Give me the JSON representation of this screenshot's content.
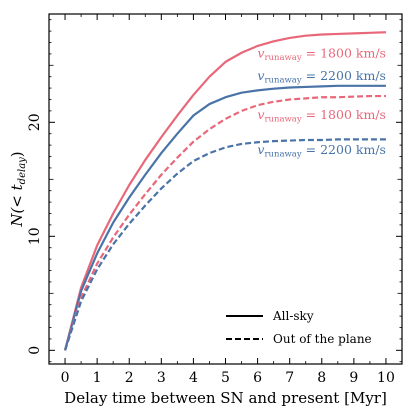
{
  "chart_data": {
    "type": "line",
    "xlabel": "Delay time between SN and present [Myr]",
    "ylabel_main": "N(< t",
    "ylabel_sub": "delay",
    "ylabel_close": ")",
    "xlim": [
      -0.5,
      10.5
    ],
    "ylim": [
      -1.2,
      29.5
    ],
    "xticks": [
      0,
      1,
      2,
      3,
      4,
      5,
      6,
      7,
      8,
      9,
      10
    ],
    "yticks": [
      0,
      10,
      20
    ],
    "colors": {
      "red": "#e8687a",
      "blue": "#4a74a8"
    },
    "series": [
      {
        "color": "red",
        "dash": false,
        "x": [
          0,
          0.5,
          1,
          1.5,
          2,
          2.5,
          3,
          3.5,
          4,
          4.5,
          5,
          5.5,
          6,
          6.5,
          7,
          7.5,
          8,
          8.5,
          9,
          9.5,
          10
        ],
        "y": [
          0,
          5.5,
          9.2,
          12.0,
          14.5,
          16.7,
          18.7,
          20.6,
          22.4,
          24.0,
          25.3,
          26.1,
          26.7,
          27.1,
          27.4,
          27.6,
          27.7,
          27.75,
          27.8,
          27.85,
          27.9
        ]
      },
      {
        "color": "blue",
        "dash": false,
        "x": [
          0,
          0.5,
          1,
          1.5,
          2,
          2.5,
          3,
          3.5,
          4,
          4.5,
          5,
          5.5,
          6,
          6.5,
          7,
          7.5,
          8,
          8.5,
          9,
          9.5,
          10
        ],
        "y": [
          0,
          5.2,
          8.5,
          11.2,
          13.4,
          15.4,
          17.3,
          19.0,
          20.6,
          21.6,
          22.2,
          22.6,
          22.8,
          22.95,
          23.05,
          23.1,
          23.15,
          23.2,
          23.2,
          23.2,
          23.2
        ]
      },
      {
        "color": "red",
        "dash": true,
        "x": [
          0,
          0.5,
          1,
          1.5,
          2,
          2.5,
          3,
          3.5,
          4,
          4.5,
          5,
          5.5,
          6,
          6.5,
          7,
          7.5,
          8,
          8.5,
          9,
          9.5,
          10
        ],
        "y": [
          0,
          4.6,
          7.6,
          9.9,
          11.9,
          13.7,
          15.4,
          16.9,
          18.3,
          19.4,
          20.3,
          21.0,
          21.5,
          21.8,
          22.0,
          22.1,
          22.2,
          22.2,
          22.25,
          22.3,
          22.3
        ]
      },
      {
        "color": "blue",
        "dash": true,
        "x": [
          0,
          0.5,
          1,
          1.5,
          2,
          2.5,
          3,
          3.5,
          4,
          4.5,
          5,
          5.5,
          6,
          6.5,
          7,
          7.5,
          8,
          8.5,
          9,
          9.5,
          10
        ],
        "y": [
          0,
          4.3,
          7.1,
          9.3,
          11.1,
          12.7,
          14.2,
          15.5,
          16.6,
          17.3,
          17.8,
          18.1,
          18.25,
          18.35,
          18.4,
          18.45,
          18.45,
          18.5,
          18.5,
          18.5,
          18.5
        ]
      }
    ],
    "annotations": [
      {
        "color": "red",
        "var": "v",
        "sub": "runaway",
        "text": " = 1800 km/s",
        "x": 10.0,
        "y": 25.7
      },
      {
        "color": "blue",
        "var": "v",
        "sub": "runaway",
        "text": " = 2200 km/s",
        "x": 10.0,
        "y": 23.7
      },
      {
        "color": "red",
        "var": "v",
        "sub": "runaway",
        "text": " = 1800 km/s",
        "x": 10.0,
        "y": 20.3
      },
      {
        "color": "blue",
        "var": "v",
        "sub": "runaway",
        "text": " = 2200 km/s",
        "x": 10.0,
        "y": 17.2
      }
    ],
    "legend": {
      "position": "lower-right",
      "entries": [
        {
          "label": "All-sky",
          "dash": false
        },
        {
          "label": "Out of the plane",
          "dash": true
        }
      ]
    }
  }
}
